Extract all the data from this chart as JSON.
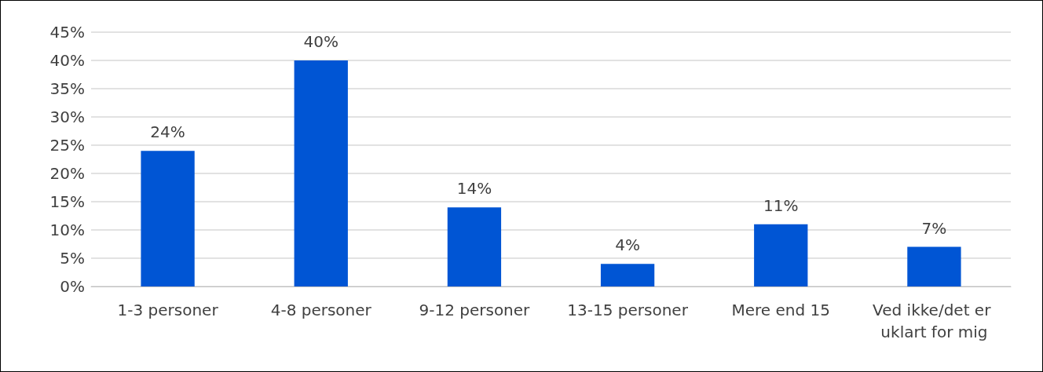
{
  "chart_data": {
    "type": "bar",
    "categories": [
      "1-3 personer",
      "4-8 personer",
      "9-12 personer",
      "13-15 personer",
      "Mere end 15",
      "Ved ikke/det er uklart for mig"
    ],
    "values": [
      24,
      40,
      14,
      4,
      11,
      7
    ],
    "value_labels": [
      "24%",
      "40%",
      "14%",
      "4%",
      "11%",
      "7%"
    ],
    "color": "#0055d4",
    "ylim": [
      0,
      45
    ],
    "yticks": [
      {
        "value": 0,
        "label": "0%"
      },
      {
        "value": 5,
        "label": "5%"
      },
      {
        "value": 10,
        "label": "10%"
      },
      {
        "value": 15,
        "label": "15%"
      },
      {
        "value": 20,
        "label": "20%"
      },
      {
        "value": 25,
        "label": "25%"
      },
      {
        "value": 30,
        "label": "30%"
      },
      {
        "value": 35,
        "label": "35%"
      },
      {
        "value": 40,
        "label": "40%"
      },
      {
        "value": 45,
        "label": "45%"
      }
    ],
    "grid": "y"
  }
}
